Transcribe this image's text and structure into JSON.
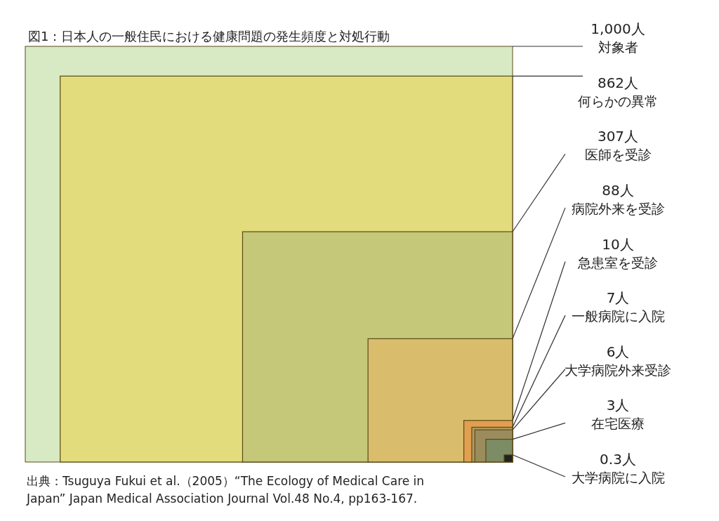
{
  "chart_data": {
    "type": "other",
    "title": "図1：日本人の一般住民における健康問題の発生頻度と対処行動",
    "categories": [
      "対象者",
      "何らかの異常",
      "医師を受診",
      "病院外来を受診",
      "急患室を受診",
      "一般病院に入院",
      "大学病院外来受診",
      "在宅医療",
      "大学病院に入院"
    ],
    "values": [
      1000,
      862,
      307,
      88,
      10,
      7,
      6,
      3,
      0.3
    ],
    "value_labels": [
      "1,000人",
      "862人",
      "307人",
      "88人",
      "10人",
      "7人",
      "6人",
      "3人",
      "0.3人"
    ],
    "colors": [
      "#d7eac3",
      "#e2dc7c",
      "#c4c878",
      "#d9bd6c",
      "#e0a04f",
      "#b59a60",
      "#9a8c5c",
      "#7c8c64",
      "#222222"
    ],
    "annotations": [
      "出典：Tsuguya Fukui et al.（2005）“The Ecology of Medical Care in",
      "Japan” Japan Medical Association Journal Vol.48 No.4, pp163-167."
    ]
  }
}
